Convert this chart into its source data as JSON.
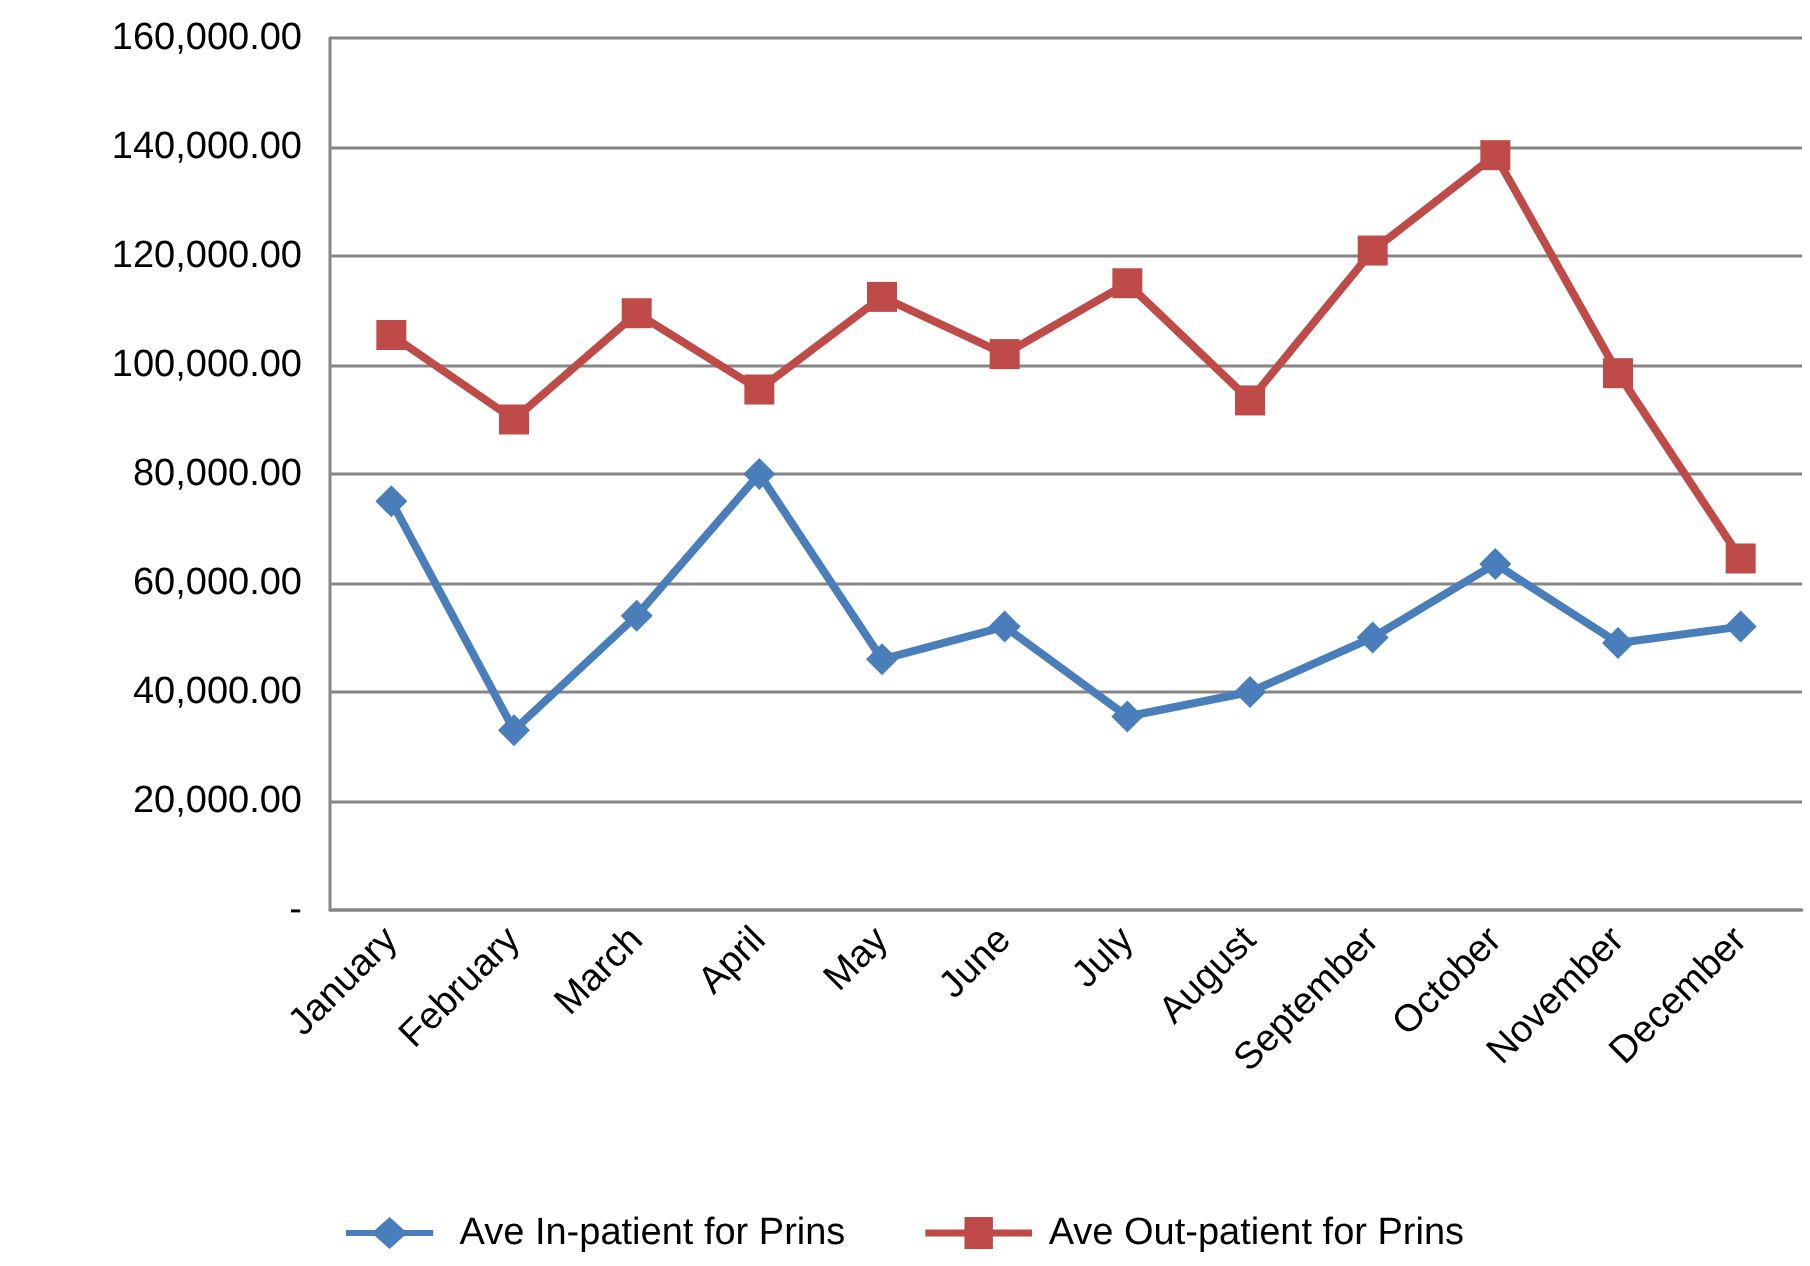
{
  "chart_data": {
    "type": "line",
    "categories": [
      "January",
      "February",
      "March",
      "April",
      "May",
      "June",
      "July",
      "August",
      "September",
      "October",
      "November",
      "December"
    ],
    "series": [
      {
        "name": "Ave In-patient for Prins",
        "color": "#4a7ebb",
        "marker": "diamond",
        "values": [
          75000,
          33000,
          54000,
          80000,
          46000,
          52000,
          35500,
          40000,
          50000,
          63500,
          49000,
          52000
        ]
      },
      {
        "name": "Ave Out-patient for Prins",
        "color": "#be4b48",
        "marker": "square",
        "values": [
          105500,
          90000,
          109500,
          95500,
          112500,
          102000,
          115000,
          93500,
          121000,
          138500,
          98500,
          64500
        ]
      }
    ],
    "ylim": [
      0,
      160000
    ],
    "yticks": [
      {
        "value": 0,
        "label": "-"
      },
      {
        "value": 20000,
        "label": "20,000.00"
      },
      {
        "value": 40000,
        "label": "40,000.00"
      },
      {
        "value": 60000,
        "label": "60,000.00"
      },
      {
        "value": 80000,
        "label": "80,000.00"
      },
      {
        "value": 100000,
        "label": "100,000.00"
      },
      {
        "value": 120000,
        "label": "120,000.00"
      },
      {
        "value": 140000,
        "label": "140,000.00"
      },
      {
        "value": 160000,
        "label": "160,000.00"
      }
    ],
    "grid": "y",
    "legend": "bottom",
    "line_style": "solid"
  }
}
